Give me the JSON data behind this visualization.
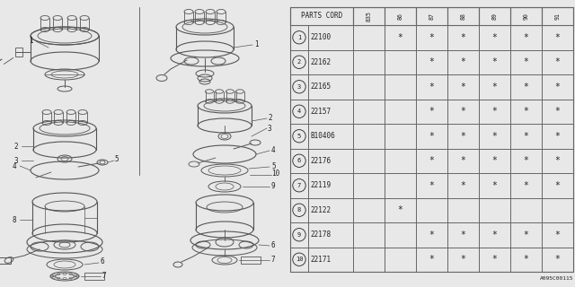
{
  "catalog_code": "A095C00115",
  "col_header": "PARTS CORD",
  "year_cols": [
    "835",
    "86",
    "87",
    "88",
    "89",
    "90",
    "91"
  ],
  "rows": [
    {
      "num": 1,
      "part": "22100",
      "marks": [
        0,
        1,
        1,
        1,
        1,
        1,
        1
      ]
    },
    {
      "num": 2,
      "part": "22162",
      "marks": [
        0,
        0,
        1,
        1,
        1,
        1,
        1
      ]
    },
    {
      "num": 3,
      "part": "22165",
      "marks": [
        0,
        0,
        1,
        1,
        1,
        1,
        1
      ]
    },
    {
      "num": 4,
      "part": "22157",
      "marks": [
        0,
        0,
        1,
        1,
        1,
        1,
        1
      ]
    },
    {
      "num": 5,
      "part": "B10406",
      "marks": [
        0,
        0,
        1,
        1,
        1,
        1,
        1
      ]
    },
    {
      "num": 6,
      "part": "22176",
      "marks": [
        0,
        0,
        1,
        1,
        1,
        1,
        1
      ]
    },
    {
      "num": 7,
      "part": "22119",
      "marks": [
        0,
        0,
        1,
        1,
        1,
        1,
        1
      ]
    },
    {
      "num": 8,
      "part": "22122",
      "marks": [
        0,
        1,
        0,
        0,
        0,
        0,
        0
      ]
    },
    {
      "num": 9,
      "part": "22178",
      "marks": [
        0,
        0,
        1,
        1,
        1,
        1,
        1
      ]
    },
    {
      "num": 10,
      "part": "22171",
      "marks": [
        0,
        0,
        1,
        1,
        1,
        1,
        1
      ]
    }
  ],
  "bg": "#e8e8e8",
  "diagram_bg": "#e8e8e8",
  "table_bg": "#e8e8e8",
  "dc": "#555555",
  "tc": "#222222",
  "lc": "#666666"
}
